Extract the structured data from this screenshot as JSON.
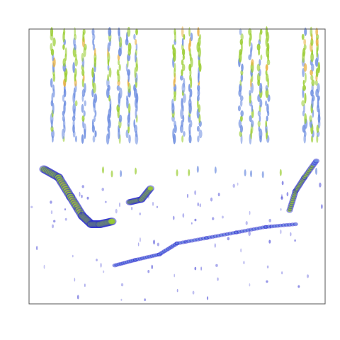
{
  "chart_data": {
    "type": "heatmap",
    "title": "",
    "xlabel": "",
    "ylabel": "",
    "grid": false,
    "legend": "none",
    "colorscale": [
      "#2a2ad0",
      "#6f8fe0",
      "#9acd32",
      "#e8b040",
      "#e65a3a"
    ],
    "x_range": [
      0,
      1
    ],
    "y_range": [
      0,
      1
    ],
    "feature_groups": [
      {
        "name": "vertical-streak-cluster",
        "x_centers": [
          0.08,
          0.12,
          0.155,
          0.185,
          0.22,
          0.27,
          0.305,
          0.335,
          0.36,
          0.49,
          0.52,
          0.545,
          0.575,
          0.715,
          0.75,
          0.78,
          0.805,
          0.93,
          0.955,
          0.975
        ],
        "y_top": 0.99,
        "y_bottom": 0.6,
        "intensity": 0.45
      },
      {
        "name": "descending-sweep",
        "points": [
          [
            0.05,
            0.49
          ],
          [
            0.1,
            0.46
          ],
          [
            0.14,
            0.39
          ],
          [
            0.18,
            0.32
          ],
          [
            0.21,
            0.29
          ],
          [
            0.24,
            0.29
          ],
          [
            0.28,
            0.3
          ]
        ],
        "intensity": [
          0.5,
          0.6,
          0.75,
          0.9,
          1.0,
          0.85,
          0.55
        ]
      },
      {
        "name": "rising-sweep",
        "points": [
          [
            0.34,
            0.37
          ],
          [
            0.38,
            0.38
          ],
          [
            0.41,
            0.42
          ]
        ],
        "intensity": [
          0.5,
          0.55,
          0.45
        ]
      },
      {
        "name": "right-rising-sweep",
        "points": [
          [
            0.88,
            0.34
          ],
          [
            0.9,
            0.41
          ],
          [
            0.93,
            0.46
          ],
          [
            0.97,
            0.52
          ]
        ],
        "intensity": [
          0.4,
          0.5,
          0.45,
          0.35
        ]
      },
      {
        "name": "mid-band-blips",
        "x_centers": [
          0.25,
          0.28,
          0.31,
          0.36,
          0.5,
          0.54,
          0.57,
          0.63,
          0.73,
          0.75,
          0.79,
          0.85,
          0.97
        ],
        "y": 0.48,
        "intensity": 0.3
      },
      {
        "name": "faint-lower-track",
        "points": [
          [
            0.29,
            0.14
          ],
          [
            0.36,
            0.16
          ],
          [
            0.44,
            0.18
          ],
          [
            0.5,
            0.22
          ],
          [
            0.6,
            0.24
          ],
          [
            0.7,
            0.26
          ],
          [
            0.8,
            0.28
          ],
          [
            0.9,
            0.29
          ]
        ],
        "intensity": [
          0.3,
          0.35,
          0.3,
          0.25,
          0.2,
          0.2,
          0.15,
          0.15
        ]
      }
    ]
  }
}
